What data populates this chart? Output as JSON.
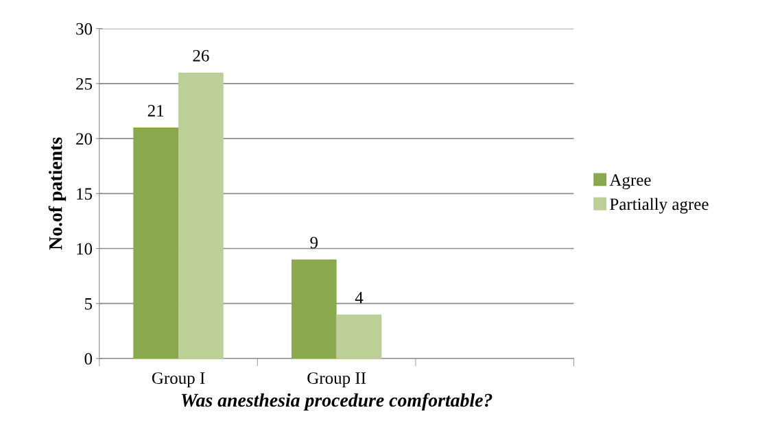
{
  "chart_data": {
    "type": "bar",
    "xlabel": "Was anesthesia procedure comfortable?",
    "ylabel": "No.of patients",
    "categories": [
      "Group I",
      "Group II",
      null
    ],
    "series": [
      {
        "name": "Agree",
        "color": "#8aa84e",
        "values": [
          21,
          9,
          null
        ]
      },
      {
        "name": "Partially agree",
        "color": "#bccf96",
        "values": [
          26,
          4,
          null
        ]
      }
    ],
    "ylim": [
      0,
      30
    ],
    "yticks": [
      0,
      5,
      10,
      15,
      20,
      25,
      30
    ],
    "grid": "y",
    "legend": "right",
    "data_labels": true
  }
}
